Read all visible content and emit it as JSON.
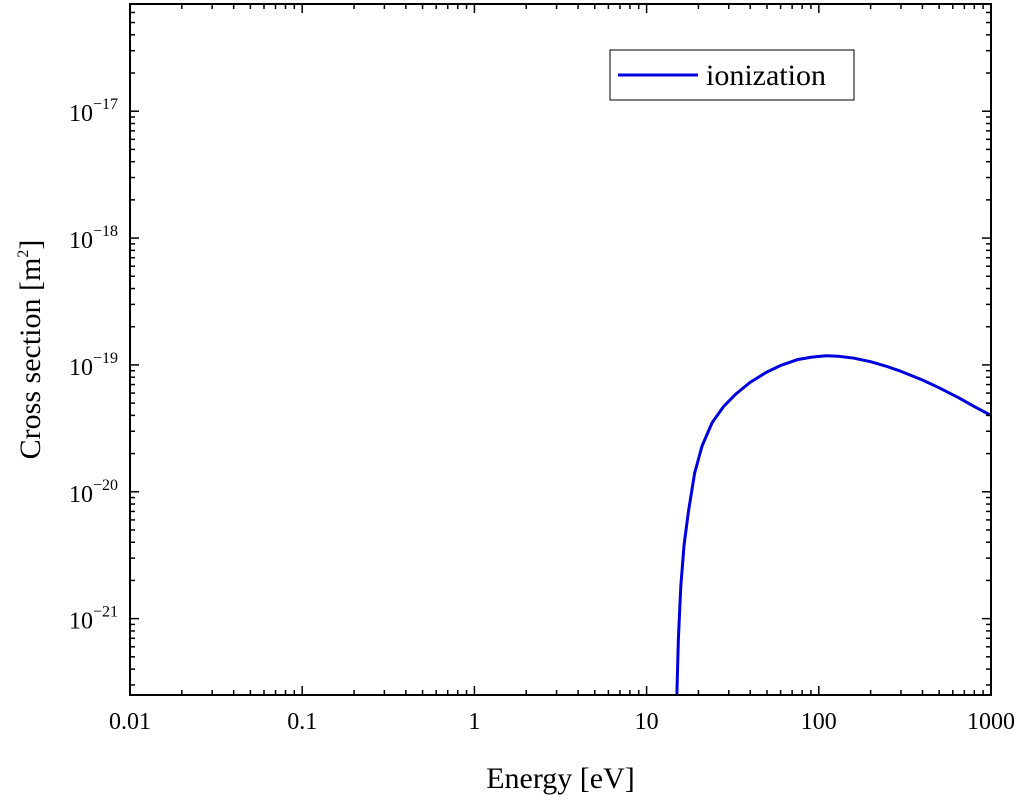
{
  "chart_data": {
    "type": "line",
    "xlabel": "Energy [eV]",
    "ylabel_base": "Cross section [m",
    "ylabel_sup": "2",
    "ylabel_close": "]",
    "x_scale": "log",
    "y_scale": "log",
    "xlim": [
      0.01,
      1000
    ],
    "ylim": [
      2.5e-22,
      7e-17
    ],
    "x_ticks": [
      {
        "value": 0.01,
        "label": "0.01"
      },
      {
        "value": 0.1,
        "label": "0.1"
      },
      {
        "value": 1,
        "label": "1"
      },
      {
        "value": 10,
        "label": "10"
      },
      {
        "value": 100,
        "label": "100"
      },
      {
        "value": 1000,
        "label": "1000"
      }
    ],
    "y_ticks": [
      {
        "value": 1e-21,
        "base": "10",
        "exp": "−21"
      },
      {
        "value": 1e-20,
        "base": "10",
        "exp": "−20"
      },
      {
        "value": 1e-19,
        "base": "10",
        "exp": "−19"
      },
      {
        "value": 1e-18,
        "base": "10",
        "exp": "−18"
      },
      {
        "value": 1e-17,
        "base": "10",
        "exp": "−17"
      }
    ],
    "grid": false,
    "legend_position": "top-right",
    "series": [
      {
        "name": "ionization",
        "color": "#0000dd",
        "x": [
          15.0,
          15.3,
          15.8,
          16.5,
          17.5,
          19.0,
          21.0,
          24.0,
          28.0,
          33.0,
          40.0,
          50.0,
          60.0,
          75.0,
          90.0,
          110.0,
          130.0,
          160.0,
          200.0,
          250.0,
          300.0,
          400.0,
          500.0,
          650.0,
          800.0,
          1000.0
        ],
        "y": [
          2.6e-22,
          7e-22,
          1.8e-21,
          3.8e-21,
          7e-21,
          1.4e-20,
          2.3e-20,
          3.5e-20,
          4.7e-20,
          5.9e-20,
          7.3e-20,
          8.8e-20,
          9.9e-20,
          1.1e-19,
          1.15e-19,
          1.18e-19,
          1.17e-19,
          1.13e-19,
          1.06e-19,
          9.7e-20,
          8.9e-20,
          7.6e-20,
          6.6e-20,
          5.5e-20,
          4.7e-20,
          4e-20
        ]
      }
    ]
  }
}
